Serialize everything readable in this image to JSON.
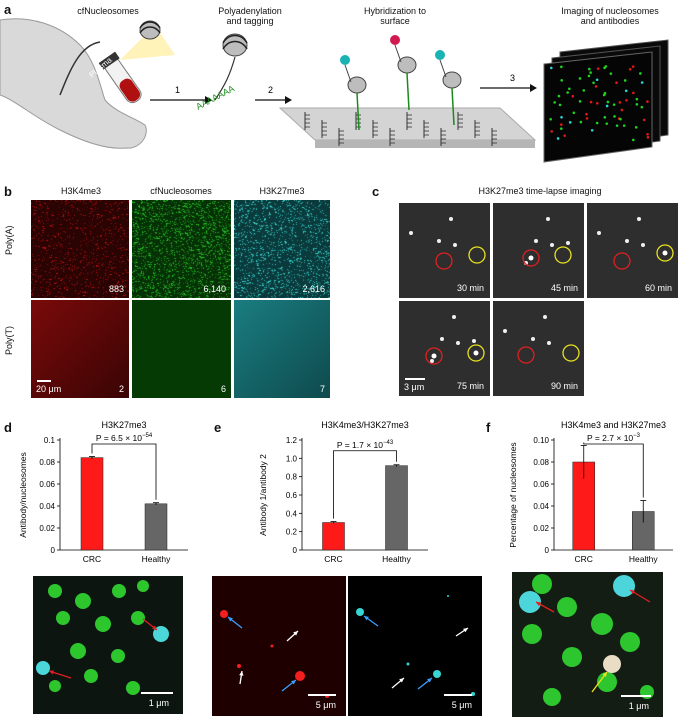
{
  "panel_a": {
    "label": "a",
    "cfnuc_title": "cfNucleosomes",
    "plasma_label": "Plasma",
    "step1_title_l1": "Polyadenylation",
    "step1_title_l2": "and tagging",
    "step2_title_l1": "Hybridization to",
    "step2_title_l2": "surface",
    "step3_title_l1": "Imaging of nucleosomes",
    "step3_title_l2": "and antibodies",
    "step_numbers": [
      "1",
      "2",
      "3"
    ],
    "polyA_seq": "AAAAAAA"
  },
  "panel_b": {
    "label": "b",
    "columns": [
      "H3K4me3",
      "cfNucleosomes",
      "H3K27me3"
    ],
    "rows": [
      "Poly(A)",
      "Poly(T)"
    ],
    "counts_polyA": [
      "883",
      "6,140",
      "2,616"
    ],
    "counts_polyT": [
      "2",
      "6",
      "7"
    ],
    "scalebar": "20 μm",
    "colors": [
      "#d11a1a",
      "#1fcc2a",
      "#35d6d3"
    ]
  },
  "panel_c": {
    "label": "c",
    "title": "H3K27me3 time-lapse imaging",
    "times": [
      "30 min",
      "45 min",
      "60 min",
      "75 min",
      "90 min"
    ],
    "scalebar": "3 μm"
  },
  "panel_d": {
    "label": "d",
    "scalebar": "1 μm",
    "chart_data": {
      "type": "bar",
      "title": "H3K27me3",
      "categories": [
        "CRC",
        "Healthy"
      ],
      "values": [
        0.084,
        0.042
      ],
      "errors": [
        0.001,
        0.001
      ],
      "ylabel": "Antibody/nucleosomes",
      "ylim": [
        0,
        0.1
      ],
      "yticks": [
        "0",
        "0.02",
        "0.04",
        "0.06",
        "0.08",
        "0.1"
      ],
      "ytick_values": [
        0,
        0.02,
        0.04,
        0.06,
        0.08,
        0.1
      ],
      "pvalue_prefix": "P = 6.5 × 10",
      "pvalue_exp": "−54",
      "bar_colors": [
        "#ff1a1a",
        "#666666"
      ]
    }
  },
  "panel_e": {
    "label": "e",
    "scalebar_left": "5 μm",
    "scalebar_right": "5 μm",
    "chart_data": {
      "type": "bar",
      "title": "H3K4me3/H3K27me3",
      "categories": [
        "CRC",
        "Healthy"
      ],
      "values": [
        0.3,
        0.92
      ],
      "errors": [
        0.01,
        0.01
      ],
      "ylabel": "Antibody 1/antibody 2",
      "ylim": [
        0,
        1.2
      ],
      "yticks": [
        "0",
        "0.2",
        "0.4",
        "0.6",
        "0.8",
        "1.0",
        "1.2"
      ],
      "ytick_values": [
        0,
        0.2,
        0.4,
        0.6,
        0.8,
        1.0,
        1.2
      ],
      "pvalue_prefix": "P = 1.7 × 10",
      "pvalue_exp": "−43",
      "bar_colors": [
        "#ff1a1a",
        "#666666"
      ]
    }
  },
  "panel_f": {
    "label": "f",
    "scalebar": "1 μm",
    "chart_data": {
      "type": "bar",
      "title": "H3K4me3 and H3K27me3",
      "categories": [
        "CRC",
        "Healthy"
      ],
      "values": [
        0.08,
        0.035
      ],
      "errors": [
        0.015,
        0.01
      ],
      "ylabel": "Percentage of nucleosomes",
      "ylim": [
        0,
        0.1
      ],
      "yticks": [
        "0",
        "0.02",
        "0.04",
        "0.06",
        "0.08",
        "0.10"
      ],
      "ytick_values": [
        0,
        0.02,
        0.04,
        0.06,
        0.08,
        0.1
      ],
      "pvalue_prefix": "P = 2.7 × 10",
      "pvalue_exp": "−3",
      "bar_colors": [
        "#ff1a1a",
        "#666666"
      ]
    }
  }
}
